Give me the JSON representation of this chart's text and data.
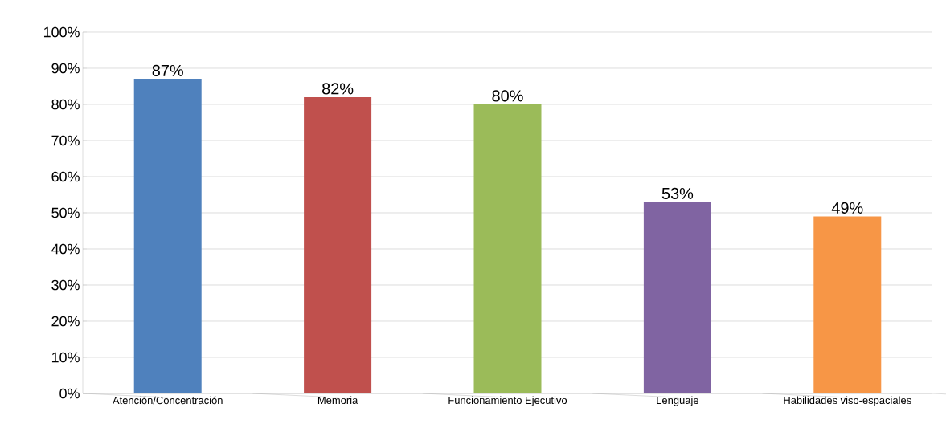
{
  "chart_data": {
    "type": "bar",
    "categories": [
      "Atención/Concentración",
      "Memoria",
      "Funcionamiento Ejecutivo",
      "Lenguaje",
      "Habilidades viso-espaciales"
    ],
    "values": [
      87,
      82,
      80,
      53,
      49
    ],
    "value_labels": [
      "87%",
      "82%",
      "80%",
      "53%",
      "49%"
    ],
    "colors": [
      "#4f81bd",
      "#c0504d",
      "#9bbb59",
      "#8064a2",
      "#f79646"
    ],
    "ylim": [
      0,
      100
    ],
    "yticks": [
      {
        "value": 0,
        "label": "0%"
      },
      {
        "value": 10,
        "label": "10%"
      },
      {
        "value": 20,
        "label": "20%"
      },
      {
        "value": 30,
        "label": "30%"
      },
      {
        "value": 40,
        "label": "40%"
      },
      {
        "value": 50,
        "label": "50%"
      },
      {
        "value": 60,
        "label": "60%"
      },
      {
        "value": 70,
        "label": "70%"
      },
      {
        "value": 80,
        "label": "80%"
      },
      {
        "value": 90,
        "label": "90%"
      },
      {
        "value": 100,
        "label": "100%"
      }
    ],
    "grid": "y"
  }
}
